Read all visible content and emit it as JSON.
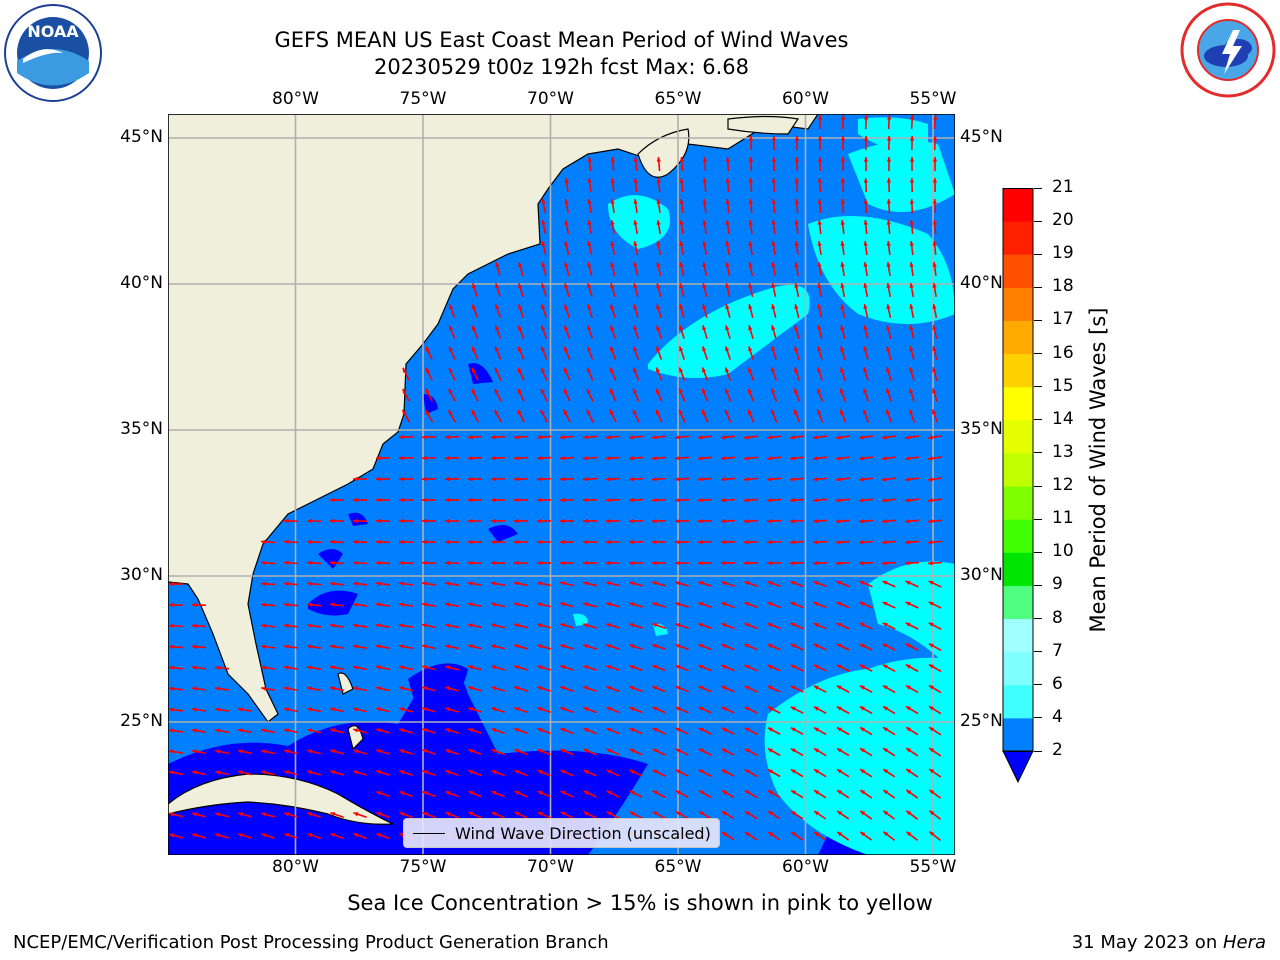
{
  "title": {
    "line1": "GEFS MEAN US East Coast Mean Period of Wind Waves",
    "line2": "20230529 t00z 192h fcst   Max: 6.68"
  },
  "logos": {
    "left": {
      "name": "NOAA",
      "text": "NOAA"
    },
    "right": {
      "name": "NATIONAL WEATHER SERVICE"
    }
  },
  "map": {
    "lon_ticks": [
      "80°W",
      "75°W",
      "70°W",
      "65°W",
      "60°W",
      "55°W"
    ],
    "lon_values": [
      -80,
      -75,
      -70,
      -65,
      -60,
      -55
    ],
    "lat_ticks": [
      "45°N",
      "40°N",
      "35°N",
      "30°N",
      "25°N"
    ],
    "lat_values": [
      45,
      40,
      35,
      30,
      25
    ],
    "lon_range": [
      -85,
      -54.2
    ],
    "lat_range": [
      20.5,
      45.8
    ],
    "colors": {
      "ocean_low": "#0080ff",
      "ocean_very_low": "#0000ff",
      "ocean_mid": "#00ffff",
      "land": "#efefdc",
      "arrow": "#ff0000",
      "grid": "#b0b0b0"
    },
    "legend": "Wind Wave Direction (unscaled)"
  },
  "colorbar": {
    "label": "Mean Period of Wind Waves [s]",
    "ticks": [
      "2",
      "4",
      "6",
      "7",
      "8",
      "9",
      "10",
      "11",
      "12",
      "13",
      "14",
      "15",
      "16",
      "17",
      "18",
      "19",
      "20",
      "21"
    ],
    "colors": [
      "#0080ff",
      "#00ffff",
      "#40ffff",
      "#80ffff",
      "#a0ffff",
      "#50ff80",
      "#00e600",
      "#40ff00",
      "#80ff00",
      "#c0ff00",
      "#e6ff00",
      "#ffff00",
      "#ffd000",
      "#ffaa00",
      "#ff8000",
      "#ff5000",
      "#ff2000",
      "#ff0000"
    ],
    "extend_color": "#0000ff"
  },
  "subcaption": "Sea Ice Concentration > 15% is shown in pink to yellow",
  "footer": {
    "left": "NCEP/EMC/Verification Post Processing Product Generation Branch",
    "right_date": "31 May 2023 on ",
    "right_host": "Hera"
  }
}
